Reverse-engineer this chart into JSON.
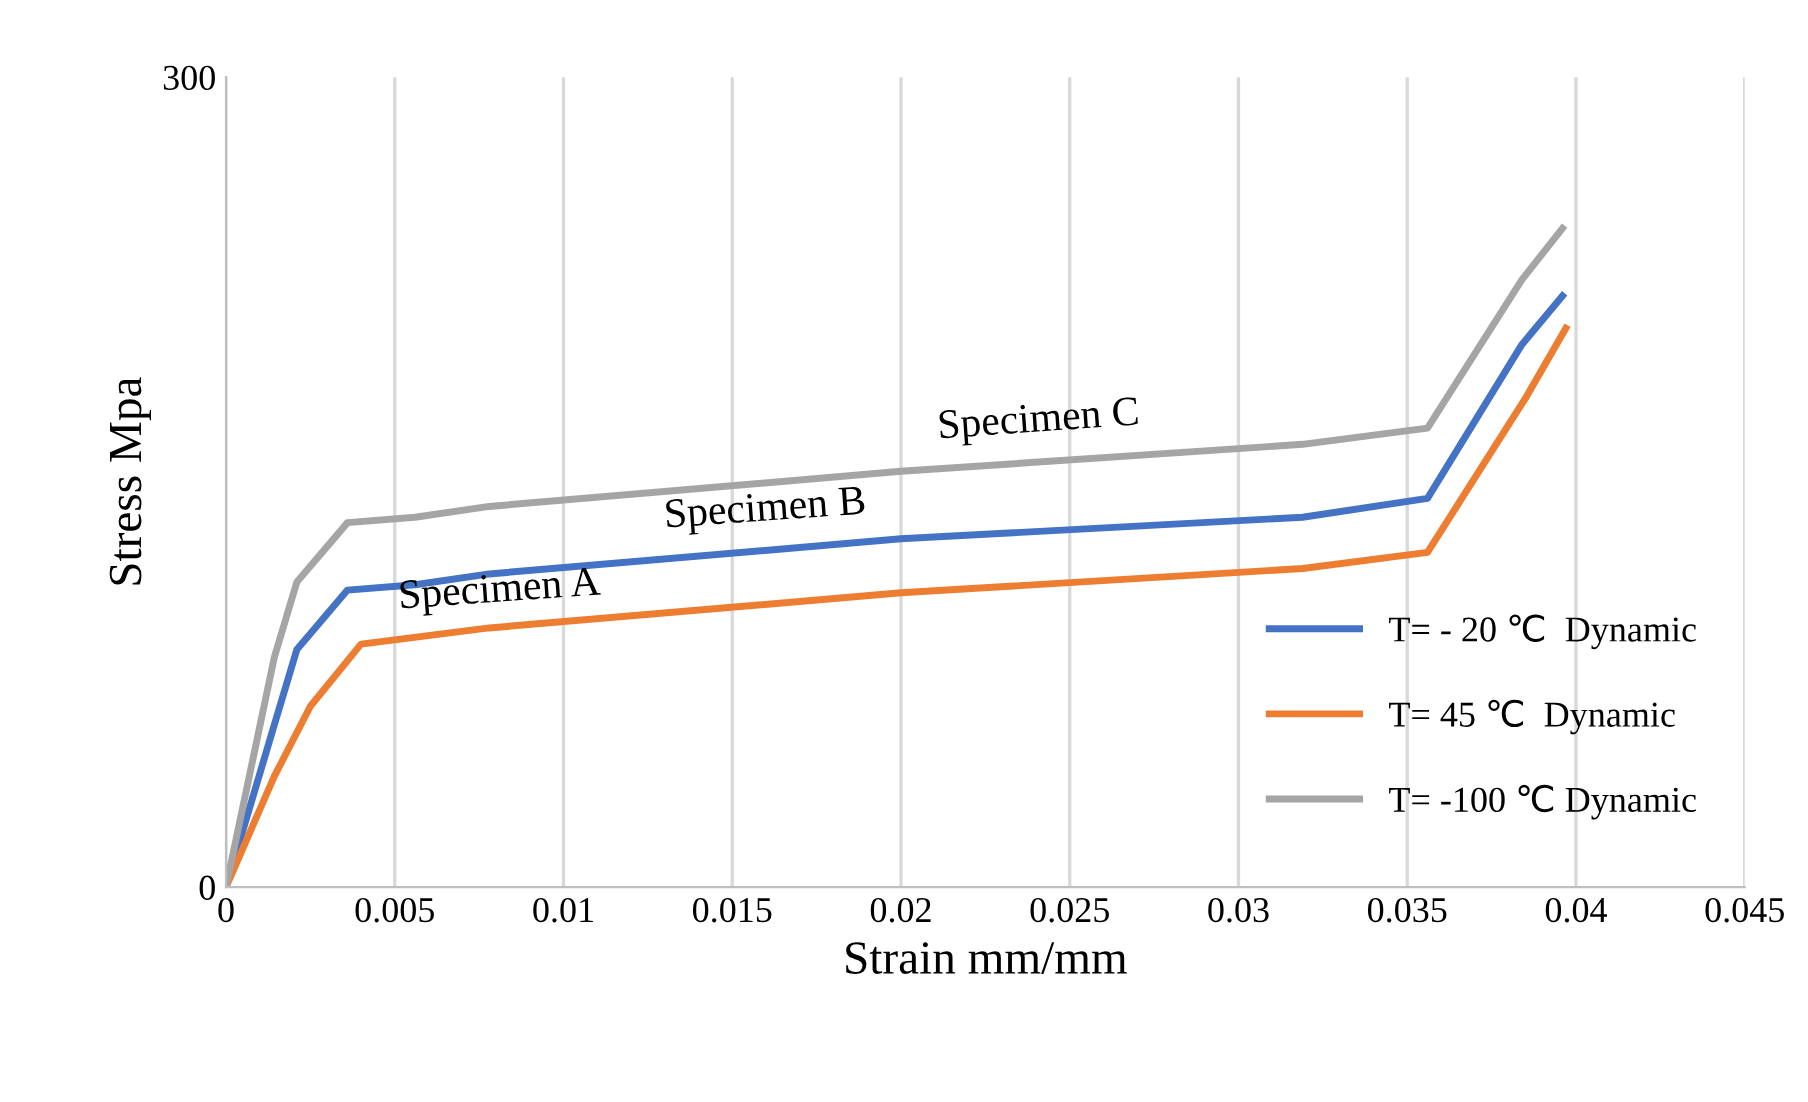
{
  "chart_data": {
    "type": "line",
    "xlabel": "Strain mm/mm",
    "ylabel": "Stress Mpa",
    "xlim": [
      0,
      0.045
    ],
    "xticks": [
      0,
      0.005,
      0.01,
      0.015,
      0.02,
      0.025,
      0.03,
      0.035,
      0.04,
      0.045
    ],
    "ylim": [
      0,
      300
    ],
    "yticks": [
      0,
      300
    ],
    "grid": "x",
    "legend": "right",
    "marker": "none",
    "line_style": "solid",
    "series": [
      {
        "name": "T= - 20 ℃  Dynamic",
        "color": "#4472c4",
        "x": [
          0,
          0.00143,
          0.0021,
          0.0036,
          0.0056,
          0.0078,
          0.02,
          0.0319,
          0.0356,
          0.0384,
          0.0396
        ],
        "values": [
          0,
          60,
          88,
          110,
          112,
          116,
          129,
          137,
          144,
          201,
          219
        ]
      },
      {
        "name": "T= 45 ℃  Dynamic",
        "color": "#ed7d31",
        "x": [
          0,
          0.00143,
          0.0025,
          0.004,
          0.0078,
          0.02,
          0.0319,
          0.0356,
          0.0385,
          0.0397
        ],
        "values": [
          0,
          41,
          67,
          90,
          96,
          109,
          118,
          124,
          181,
          207
        ]
      },
      {
        "name": "T= -100 ℃ Dynamic",
        "color": "#a5a5a5",
        "x": [
          0,
          0.00143,
          0.0021,
          0.0036,
          0.0056,
          0.0078,
          0.02,
          0.0319,
          0.0356,
          0.0384,
          0.0396
        ],
        "values": [
          0,
          85,
          113,
          135,
          137,
          141,
          154,
          164,
          170,
          225,
          244
        ]
      }
    ],
    "annotations": [
      "Specimen A",
      "Specimen B",
      "Specimen C"
    ]
  }
}
